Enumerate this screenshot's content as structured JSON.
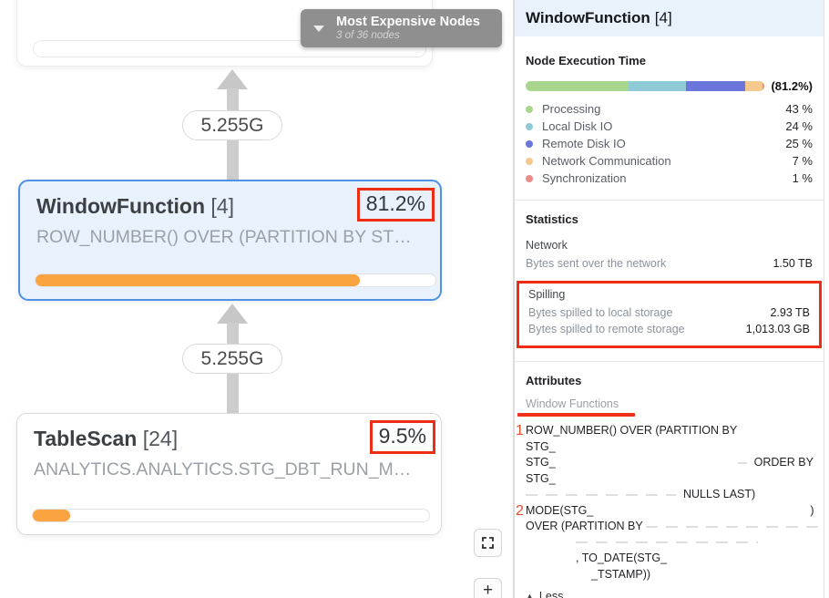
{
  "canvas": {
    "tooltip": {
      "title": "Most Expensive Nodes",
      "subtitle": "3 of 36 nodes"
    },
    "edges": [
      {
        "label": "5.255G"
      },
      {
        "label": "5.255G"
      }
    ],
    "nodes": [
      {
        "name": "WindowFunction",
        "count": "[4]",
        "percent": "81.2%",
        "subtitle": "ROW_NUMBER() OVER (PARTITION BY ST…",
        "progress": 81.2,
        "selected": true
      },
      {
        "name": "TableScan",
        "count": "[24]",
        "percent": "9.5%",
        "subtitle": "ANALYTICS.ANALYTICS.STG_DBT_RUN_M…",
        "progress": 9.5,
        "selected": false
      }
    ],
    "controls": {
      "zoom_in_label": "+"
    }
  },
  "panel": {
    "title": "WindowFunction",
    "title_count": "[4]",
    "execution_time": {
      "heading": "Node Execution Time",
      "total_label": "(81.2%)",
      "segments": [
        {
          "label": "Processing",
          "value": "43 %",
          "pct": 43,
          "color": "#a7d68c"
        },
        {
          "label": "Local Disk IO",
          "value": "24 %",
          "pct": 24,
          "color": "#8ecbd7"
        },
        {
          "label": "Remote Disk IO",
          "value": "25 %",
          "pct": 25,
          "color": "#6b76dd"
        },
        {
          "label": "Network Communication",
          "value": "7 %",
          "pct": 7,
          "color": "#f5c98d"
        },
        {
          "label": "Synchronization",
          "value": "1 %",
          "pct": 1,
          "color": "#ed8b87"
        }
      ]
    },
    "statistics": {
      "heading": "Statistics",
      "groups": [
        {
          "name": "Network",
          "highlighted": false,
          "rows": [
            {
              "label": "Bytes sent over the network",
              "value": "1.50 TB"
            }
          ]
        },
        {
          "name": "Spilling",
          "highlighted": true,
          "rows": [
            {
              "label": "Bytes spilled to local storage",
              "value": "2.93 TB"
            },
            {
              "label": "Bytes spilled to remote storage",
              "value": "1,013.03 GB"
            }
          ]
        }
      ]
    },
    "attributes": {
      "heading": "Attributes",
      "subheading": "Window Functions",
      "items": [
        {
          "num": "1",
          "lines": [
            [
              {
                "t": "ROW_NUMBER() OVER (PARTITION BY"
              }
            ],
            [
              {
                "t": "STG_"
              },
              {
                "sp": 60
              }
            ],
            [
              {
                "t": "STG_"
              },
              {
                "sp": 200
              },
              {
                "dash": 10
              },
              {
                "sp": 8
              },
              {
                "t": "ORDER BY"
              }
            ],
            [
              {
                "t": "STG_"
              },
              {
                "sp": 60
              }
            ],
            [
              {
                "dash": 165
              },
              {
                "sp": 8
              },
              {
                "t": "NULLS LAST)"
              }
            ]
          ]
        },
        {
          "num": "2",
          "lines": [
            [
              {
                "t": "MODE(STG_"
              },
              {
                "sp": 238
              },
              {
                "t": ")"
              }
            ],
            [
              {
                "t": "OVER (PARTITION BY "
              },
              {
                "dash": 190
              }
            ],
            [
              {
                "sp": 55
              },
              {
                "dash": 200
              }
            ],
            [
              {
                "sp": 55
              },
              {
                "t": ", TO_DATE(STG_"
              }
            ],
            [
              {
                "sp": 72
              },
              {
                "t": "_TSTAMP))"
              }
            ]
          ]
        }
      ],
      "less_label": "Less"
    }
  }
}
